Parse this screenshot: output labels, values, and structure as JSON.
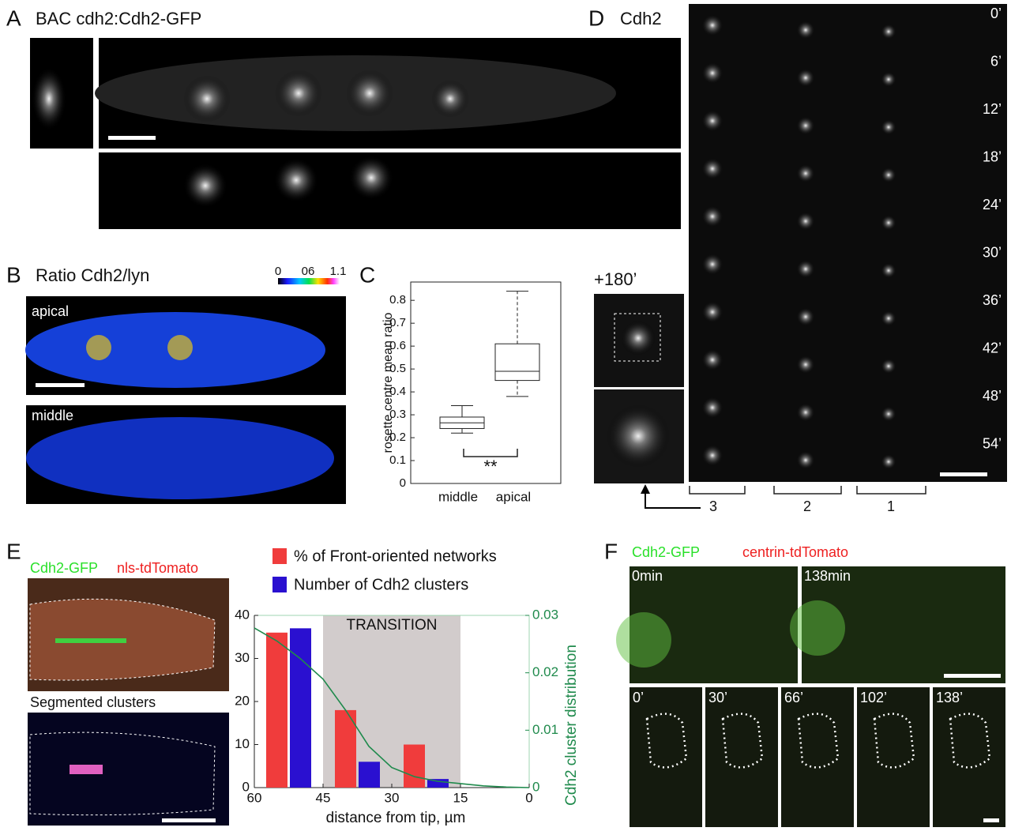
{
  "panels": {
    "A": {
      "letter": "A",
      "title": "BAC cdh2:Cdh2-GFP"
    },
    "B": {
      "letter": "B",
      "title": "Ratio Cdh2/lyn",
      "colorbar_labels": [
        "0",
        "06",
        "1.1"
      ],
      "top_label": "apical",
      "bottom_label": "middle"
    },
    "C": {
      "letter": "C"
    },
    "D": {
      "letter": "D",
      "title": "Cdh2",
      "times": [
        "0’",
        "6’",
        "12’",
        "18’",
        "24’",
        "30’",
        "36’",
        "42’",
        "48’",
        "54’"
      ],
      "inset_label": "+180’",
      "rosettes": [
        "3",
        "2",
        "1"
      ]
    },
    "E": {
      "letter": "E",
      "green_label": "Cdh2-GFP",
      "red_label": "nls-tdTomato",
      "bottom_label": "Segmented clusters"
    },
    "F": {
      "letter": "F",
      "green_label": "Cdh2-GFP",
      "red_label": "centrin-tdTomato",
      "top_times": [
        "0min",
        "138min"
      ],
      "bottom_times": [
        "0’",
        "30’",
        "66’",
        "102’",
        "138’"
      ]
    }
  },
  "chart_data": [
    {
      "type": "box",
      "ylabel": "rosette centre mean ratio",
      "categories": [
        "middle",
        "apical"
      ],
      "stats": [
        {
          "min": 0.22,
          "q1": 0.24,
          "median": 0.265,
          "q3": 0.29,
          "max": 0.34
        },
        {
          "min": 0.38,
          "q1": 0.45,
          "median": 0.49,
          "q3": 0.61,
          "max": 0.84
        }
      ],
      "ylim": [
        0,
        0.88
      ],
      "yticks": [
        0,
        0.1,
        0.2,
        0.3,
        0.4,
        0.5,
        0.6,
        0.7,
        0.8
      ],
      "annotation": "**"
    },
    {
      "type": "bar",
      "x": [
        52.5,
        37.5,
        22.5
      ],
      "xlabel": "distance from tip, µm",
      "y2label": "Cdh2 cluster distribution",
      "xlim": [
        60,
        0
      ],
      "xticks": [
        60,
        45,
        30,
        15,
        0
      ],
      "ylim": [
        0,
        40
      ],
      "yticks": [
        0,
        10,
        20,
        30,
        40
      ],
      "y2lim": [
        0,
        0.03
      ],
      "y2ticks": [
        0,
        0.01,
        0.02,
        0.03
      ],
      "annotation": "TRANSITION",
      "shaded_range": [
        45,
        15
      ],
      "series": [
        {
          "name": "% of Front-oriented networks",
          "color": "#f03c3c",
          "values": [
            36,
            18,
            10
          ]
        },
        {
          "name": "Number of Cdh2 clusters",
          "color": "#2a10d0",
          "values": [
            37,
            6,
            2
          ]
        },
        {
          "color": "#1f8a4c",
          "axis": "y2",
          "x": [
            60,
            55,
            50,
            45,
            40,
            35,
            30,
            25,
            20,
            15,
            10,
            5,
            0
          ],
          "values": [
            0.0278,
            0.0255,
            0.0225,
            0.0189,
            0.0134,
            0.0072,
            0.0035,
            0.0019,
            0.0011,
            0.0007,
            0.0003,
            0.0001,
            0
          ]
        }
      ]
    }
  ]
}
